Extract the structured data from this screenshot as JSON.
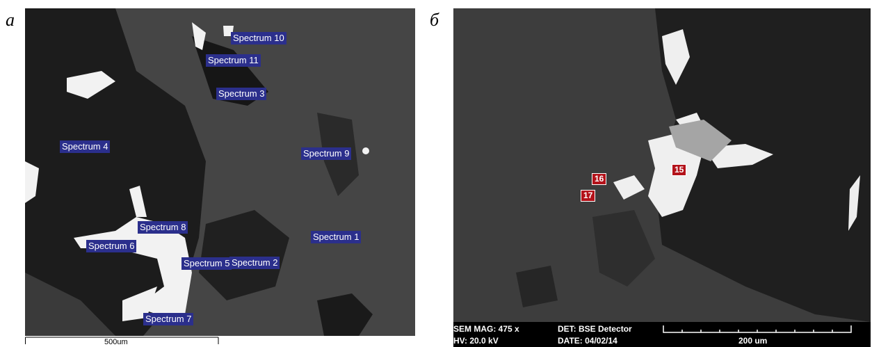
{
  "panels": [
    {
      "letter": "а",
      "spectra": [
        "Spectrum 10",
        "Spectrum 11",
        "Spectrum 3",
        "Spectrum 4",
        "Spectrum 9",
        "Spectrum 8",
        "Spectrum 6",
        "Spectrum 1",
        "Spectrum 2",
        "Spectrum 5",
        "Spectrum 7"
      ],
      "scale_bar": "500um"
    },
    {
      "letter": "б",
      "points": [
        "16",
        "15",
        "17"
      ],
      "info": {
        "mag": "SEM MAG: 475 x",
        "det": "DET: BSE Detector",
        "hv": "HV:  20.0 kV",
        "date": "DATE: 04/02/14",
        "scale": "200 um"
      }
    }
  ]
}
